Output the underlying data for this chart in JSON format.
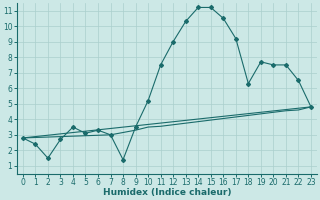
{
  "bg_color": "#cce8e6",
  "grid_color": "#aacfcd",
  "line_color": "#1a6b6b",
  "xlabel": "Humidex (Indice chaleur)",
  "ylabel_ticks": [
    1,
    2,
    3,
    4,
    5,
    6,
    7,
    8,
    9,
    10,
    11
  ],
  "xlabel_ticks": [
    0,
    1,
    2,
    3,
    4,
    5,
    6,
    7,
    8,
    9,
    10,
    11,
    12,
    13,
    14,
    15,
    16,
    17,
    18,
    19,
    20,
    21,
    22,
    23
  ],
  "xlim": [
    -0.5,
    23.5
  ],
  "ylim": [
    0.5,
    11.5
  ],
  "line1_x": [
    0,
    1,
    2,
    3,
    4,
    5,
    6,
    7,
    8,
    9,
    10,
    11,
    12,
    13,
    14,
    15,
    16,
    17,
    18,
    19,
    20,
    21,
    22,
    23
  ],
  "line1_y": [
    2.8,
    2.4,
    1.5,
    2.7,
    3.5,
    3.1,
    3.3,
    3.0,
    1.4,
    3.5,
    5.2,
    7.5,
    9.0,
    10.3,
    11.2,
    11.2,
    10.5,
    9.2,
    6.3,
    7.7,
    7.5,
    7.5,
    6.5,
    4.8
  ],
  "line2_x": [
    0,
    23
  ],
  "line2_y": [
    2.8,
    4.8
  ],
  "line3_x": [
    0,
    7,
    9,
    10,
    11,
    12,
    13,
    14,
    15,
    16,
    17,
    18,
    19,
    20,
    21,
    22,
    23
  ],
  "line3_y": [
    2.8,
    3.0,
    3.3,
    3.5,
    3.55,
    3.65,
    3.75,
    3.85,
    3.95,
    4.05,
    4.15,
    4.25,
    4.35,
    4.45,
    4.55,
    4.6,
    4.8
  ],
  "markersize": 2.0,
  "linewidth": 0.8
}
